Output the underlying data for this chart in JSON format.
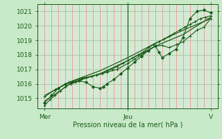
{
  "bg_color": "#c8eac8",
  "plot_bg_color": "#d4ead4",
  "grid_color_v": "#e89898",
  "grid_color_h": "#a0c8a0",
  "line_color": "#1a5c1a",
  "ylim": [
    1014.3,
    1021.5
  ],
  "yticks": [
    1015,
    1016,
    1017,
    1018,
    1019,
    1020,
    1021
  ],
  "xlim": [
    0,
    104
  ],
  "xtick_positions": [
    4,
    52,
    100
  ],
  "xtick_labels": [
    "Mer",
    "Jeu",
    "V"
  ],
  "xlabel": "Pression niveau de la mer( hPa )",
  "vline_x": 52,
  "n_vgrid": 26,
  "series": [
    {
      "x": [
        4,
        7,
        10,
        13,
        16,
        19,
        22,
        25,
        28,
        31,
        34,
        37,
        40,
        43,
        46,
        49,
        52,
        55,
        58,
        61,
        64,
        67,
        70,
        73,
        76,
        79,
        82,
        85,
        88,
        91,
        94,
        97,
        100
      ],
      "y": [
        1014.5,
        1014.9,
        1015.2,
        1015.5,
        1015.8,
        1016.0,
        1016.1,
        1016.3,
        1016.4,
        1016.5,
        1016.6,
        1016.7,
        1016.9,
        1017.0,
        1017.2,
        1017.4,
        1017.6,
        1017.8,
        1018.0,
        1018.2,
        1018.5,
        1018.7,
        1018.9,
        1019.1,
        1019.3,
        1019.5,
        1019.7,
        1019.9,
        1020.1,
        1020.3,
        1020.5,
        1020.6,
        1020.7
      ],
      "marker": "+",
      "ms": 2.5,
      "lw": 0.8
    },
    {
      "x": [
        4,
        8,
        12,
        16,
        20,
        24,
        28,
        32,
        36,
        38,
        40,
        44,
        48,
        52,
        56,
        60,
        64,
        68,
        70,
        72,
        76,
        80,
        84,
        88,
        92,
        96,
        100
      ],
      "y": [
        1014.7,
        1015.2,
        1015.7,
        1016.0,
        1016.1,
        1016.2,
        1016.1,
        1015.8,
        1015.7,
        1015.8,
        1016.0,
        1016.3,
        1016.7,
        1017.1,
        1017.5,
        1017.9,
        1018.3,
        1018.6,
        1018.2,
        1017.8,
        1018.1,
        1018.4,
        1019.2,
        1020.5,
        1021.0,
        1021.1,
        1020.9
      ],
      "marker": "D",
      "ms": 2.0,
      "lw": 0.8
    },
    {
      "x": [
        4,
        10,
        18,
        26,
        34,
        40,
        46,
        52,
        56,
        60,
        64,
        68,
        72,
        76,
        80,
        84,
        88,
        92,
        96,
        100
      ],
      "y": [
        1015.1,
        1015.6,
        1016.1,
        1016.4,
        1016.6,
        1016.8,
        1017.0,
        1017.4,
        1017.7,
        1018.0,
        1018.3,
        1018.6,
        1018.65,
        1018.5,
        1018.7,
        1018.9,
        1019.3,
        1019.7,
        1019.9,
        1020.5
      ],
      "marker": "+",
      "ms": 2.5,
      "lw": 0.8
    },
    {
      "x": [
        4,
        20,
        36,
        52,
        68,
        84,
        100
      ],
      "y": [
        1014.8,
        1016.1,
        1016.7,
        1017.6,
        1018.6,
        1019.4,
        1020.6
      ],
      "marker": null,
      "ms": 0,
      "lw": 0.9
    },
    {
      "x": [
        4,
        20,
        36,
        52,
        68,
        84,
        100
      ],
      "y": [
        1015.2,
        1016.2,
        1016.9,
        1017.8,
        1018.8,
        1019.7,
        1020.5
      ],
      "marker": null,
      "ms": 0,
      "lw": 0.9
    }
  ]
}
